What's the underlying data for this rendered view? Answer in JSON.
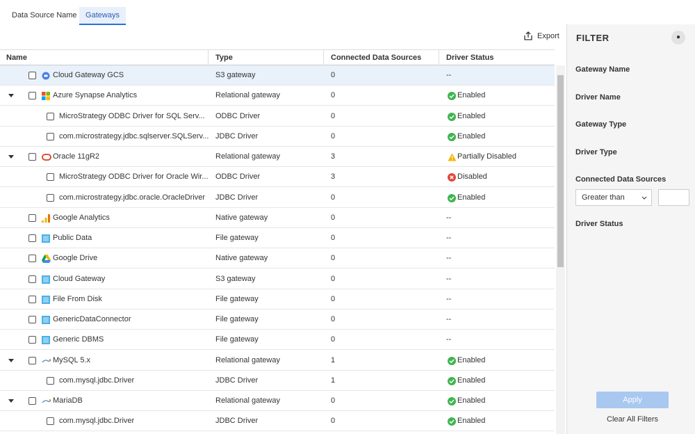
{
  "tabs": [
    "Data Source Name",
    "Gateways"
  ],
  "export": "Export",
  "table": {
    "columns": [
      "Name",
      "Type",
      "Connected Data Sources",
      "Driver Status"
    ],
    "rows": [
      [
        "Cloud Gateway GCS",
        "S3 gateway",
        "0",
        "--"
      ],
      [
        "Azure Synapse Analytics",
        "Relational gateway",
        "0",
        "Enabled"
      ],
      [
        "MicroStrategy ODBC Driver for SQL Serv...",
        "ODBC Driver",
        "0",
        "Enabled"
      ],
      [
        "com.microstrategy.jdbc.sqlserver.SQLServ...",
        "JDBC Driver",
        "0",
        "Enabled"
      ],
      [
        "Oracle 11gR2",
        "Relational gateway",
        "3",
        "Partially Disabled"
      ],
      [
        "MicroStrategy ODBC Driver for Oracle Wir...",
        "ODBC Driver",
        "3",
        "Disabled"
      ],
      [
        "com.microstrategy.jdbc.oracle.OracleDriver",
        "JDBC Driver",
        "0",
        "Enabled"
      ],
      [
        "Google Analytics",
        "Native gateway",
        "0",
        "--"
      ],
      [
        "Public Data",
        "File gateway",
        "0",
        "--"
      ],
      [
        "Google Drive",
        "Native gateway",
        "0",
        "--"
      ],
      [
        "Cloud Gateway",
        "S3 gateway",
        "0",
        "--"
      ],
      [
        "File From Disk",
        "File gateway",
        "0",
        "--"
      ],
      [
        "GenericDataConnector",
        "File gateway",
        "0",
        "--"
      ],
      [
        "Generic DBMS",
        "File gateway",
        "0",
        "--"
      ],
      [
        "MySQL 5.x",
        "Relational gateway",
        "1",
        "Enabled"
      ],
      [
        "com.mysql.jdbc.Driver",
        "JDBC Driver",
        "1",
        "Enabled"
      ],
      [
        "MariaDB",
        "Relational gateway",
        "0",
        "Enabled"
      ],
      [
        "com.mysql.jdbc.Driver",
        "JDBC Driver",
        "0",
        "Enabled"
      ]
    ]
  },
  "filter": {
    "title": "FILTER",
    "fields": [
      "Gateway Name",
      "Driver Name",
      "Gateway Type",
      "Driver Type",
      "Connected Data Sources"
    ],
    "operator": "Greater than",
    "last_field": "Driver Status",
    "apply": "Apply",
    "clear": "Clear All Filters"
  }
}
